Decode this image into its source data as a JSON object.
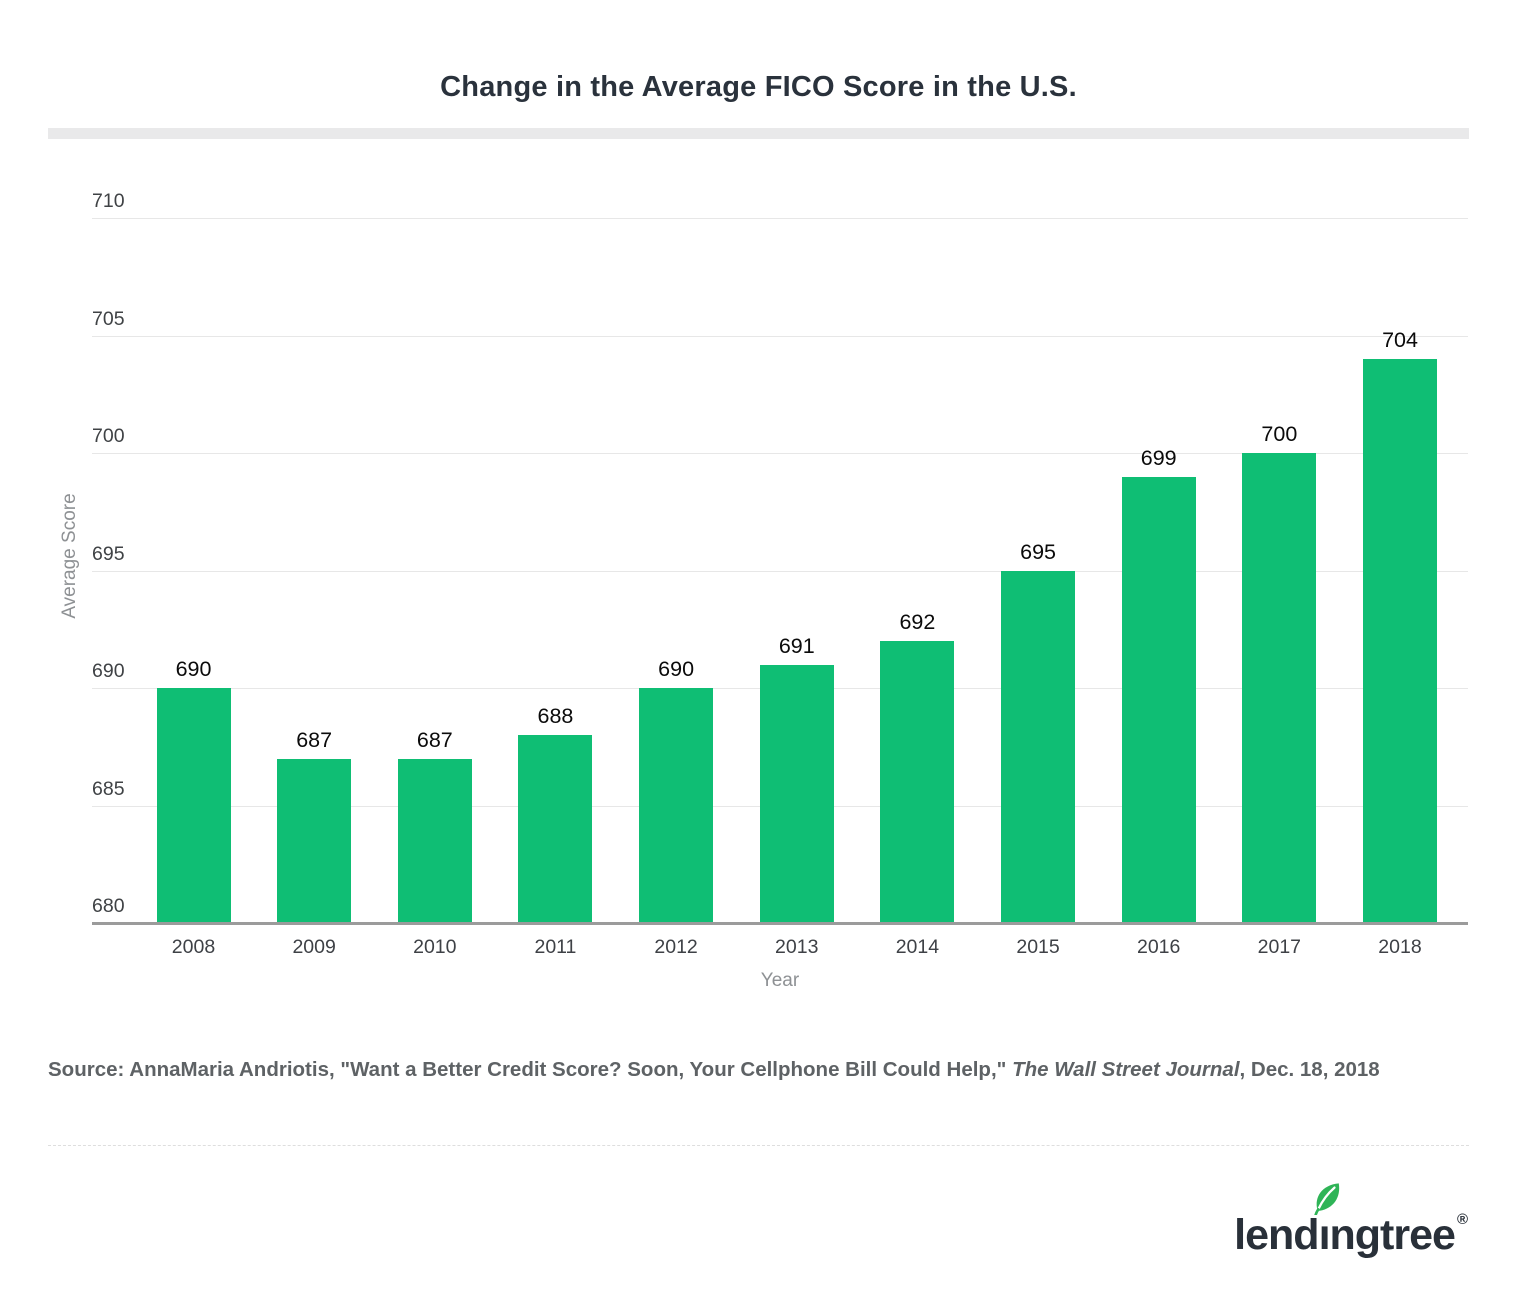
{
  "chart_data": {
    "type": "bar",
    "title": "Change in the Average FICO Score in the U.S.",
    "xlabel": "Year",
    "ylabel": "Average Score",
    "categories": [
      "2008",
      "2009",
      "2010",
      "2011",
      "2012",
      "2013",
      "2014",
      "2015",
      "2016",
      "2017",
      "2018"
    ],
    "values": [
      690,
      687,
      687,
      688,
      690,
      691,
      692,
      695,
      699,
      700,
      704
    ],
    "ylim": [
      680,
      710
    ],
    "yticks": [
      680,
      685,
      690,
      695,
      700,
      705,
      710
    ],
    "grid": true,
    "legend": "none"
  },
  "source": {
    "prefix": "Source: AnnaMaria Andriotis, \"Want a Better Credit Score? Soon, Your Cellphone Bill Could Help,\" ",
    "italic_text": "The Wall Street Journal",
    "suffix": ", Dec. 18, 2018"
  },
  "footer": {
    "brand_pre": "lend",
    "brand_i": "ı",
    "brand_post": "ngtree",
    "registered": "®"
  },
  "colors": {
    "bar": "#0FBE74",
    "leaf": "#2FB457",
    "brand": "#293039"
  }
}
